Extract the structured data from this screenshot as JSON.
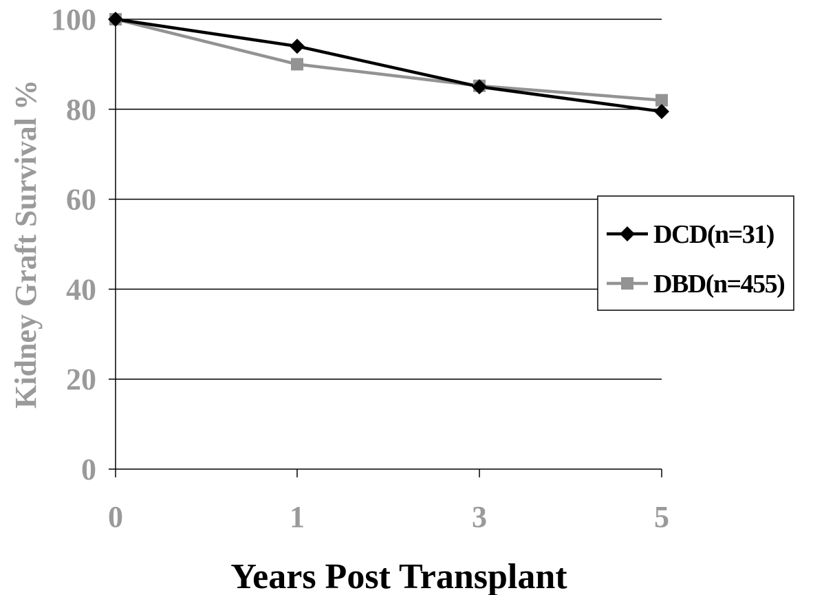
{
  "chart_data": {
    "type": "line",
    "title": "",
    "xlabel": "Years Post Transplant",
    "ylabel": "Kidney Graft Survival %",
    "categories": [
      "0",
      "1",
      "3",
      "5"
    ],
    "ylim": [
      0,
      100
    ],
    "yticks": [
      "0",
      "20",
      "40",
      "60",
      "80",
      "100"
    ],
    "grid": true,
    "legend_position": "right",
    "series": [
      {
        "name": "DCD(n=31)",
        "values": [
          100,
          94,
          85,
          79.5
        ],
        "color": "#000000",
        "marker": "diamond"
      },
      {
        "name": "DBD(n=455)",
        "values": [
          100,
          90,
          85.2,
          82
        ],
        "color": "#939393",
        "marker": "square"
      }
    ],
    "colors": {
      "tick_text": "#9a9a9a",
      "axis_title_y": "#9a9a9a",
      "axis_title_x": "#000000",
      "grid": "#000000"
    }
  }
}
